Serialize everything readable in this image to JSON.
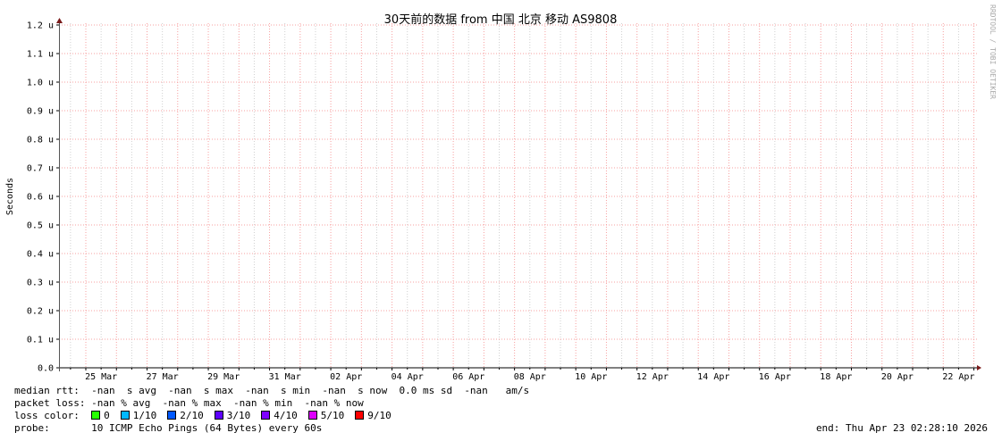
{
  "chart_data": {
    "type": "line",
    "title": "30天前的数据 from  中国 北京 移动 AS9808",
    "ylabel": "Seconds",
    "ylim": [
      0,
      1.2
    ],
    "yunit": "u",
    "y_ticks": [
      "0.0",
      "0.1 u",
      "0.2 u",
      "0.3 u",
      "0.4 u",
      "0.5 u",
      "0.6 u",
      "0.7 u",
      "0.8 u",
      "0.9 u",
      "1.0 u",
      "1.1 u",
      "1.2 u"
    ],
    "x_ticks": [
      "25 Mar",
      "27 Mar",
      "29 Mar",
      "31 Mar",
      "02 Apr",
      "04 Apr",
      "06 Apr",
      "08 Apr",
      "10 Apr",
      "12 Apr",
      "14 Apr",
      "16 Apr",
      "18 Apr",
      "20 Apr",
      "22 Apr"
    ],
    "series": [],
    "grid": true,
    "watermark": "RRDTOOL / TOBI OETIKER"
  },
  "legend": {
    "median_rtt": "median rtt:  -nan  s avg  -nan  s max  -nan  s min  -nan  s now  0.0 ms sd  -nan   am/s",
    "packet_loss": "packet loss: -nan % avg  -nan % max  -nan % min  -nan % now",
    "loss_color_label": "loss color:  ",
    "loss_colors": [
      {
        "label": "0",
        "color": "#26ff00"
      },
      {
        "label": "1/10",
        "color": "#00b8ff"
      },
      {
        "label": "2/10",
        "color": "#0059ff"
      },
      {
        "label": "3/10",
        "color": "#5e00ff"
      },
      {
        "label": "4/10",
        "color": "#7e00ff"
      },
      {
        "label": "5/10",
        "color": "#dd00ff"
      },
      {
        "label": "9/10",
        "color": "#ff0000"
      }
    ],
    "probe": "probe:       10 ICMP Echo Pings (64 Bytes) every 60s",
    "end": "end: Thu Apr 23 02:28:10 2026"
  }
}
